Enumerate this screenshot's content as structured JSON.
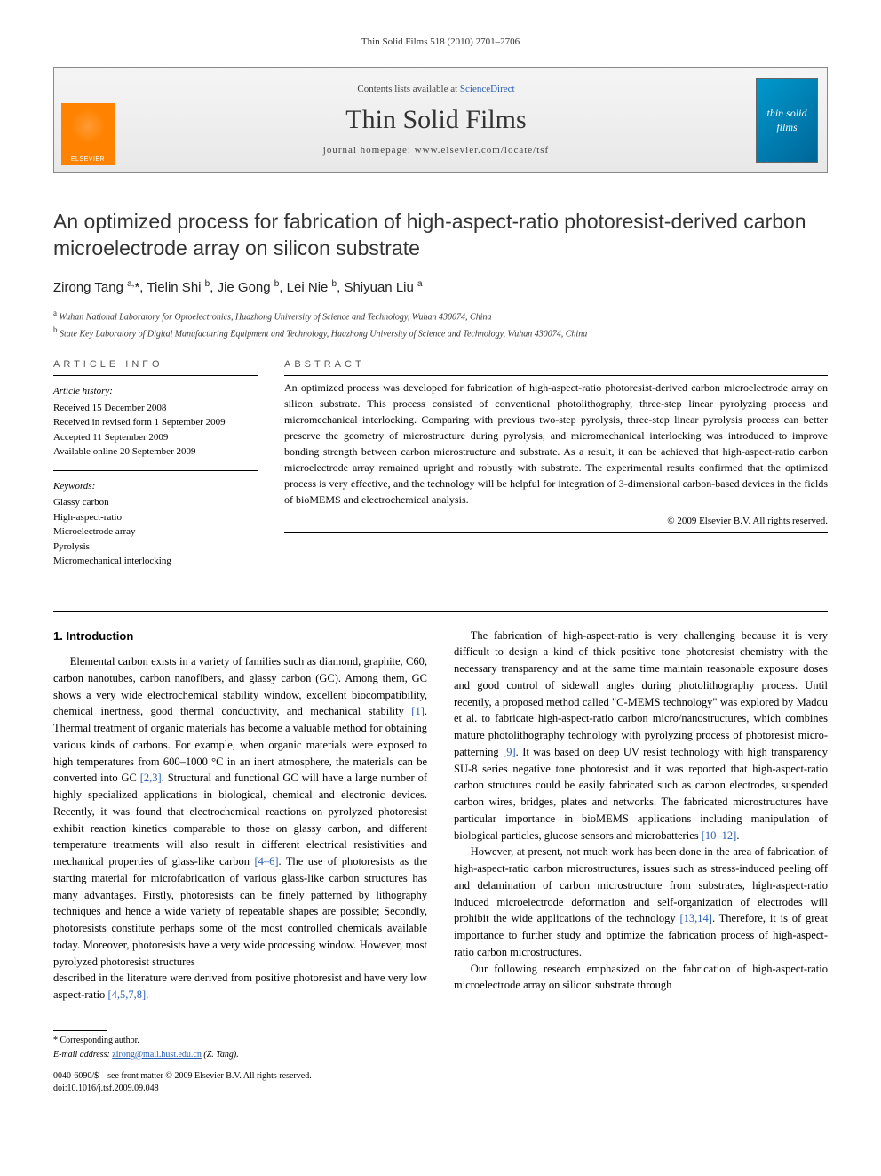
{
  "page_header": "Thin Solid Films 518 (2010) 2701–2706",
  "banner": {
    "contents_prefix": "Contents lists available at ",
    "contents_link": "ScienceDirect",
    "journal_name": "Thin Solid Films",
    "homepage_label": "journal homepage: www.elsevier.com/locate/tsf",
    "publisher_logo_text": "ELSEVIER",
    "cover_text": "thin solid films"
  },
  "title": "An optimized process for fabrication of high-aspect-ratio photoresist-derived carbon microelectrode array on silicon substrate",
  "authors_html": "Zirong Tang <sup>a,</sup>*, Tielin Shi <sup>b</sup>, Jie Gong <sup>b</sup>, Lei Nie <sup>b</sup>, Shiyuan Liu <sup>a</sup>",
  "affiliations": [
    {
      "sup": "a",
      "text": "Wuhan National Laboratory for Optoelectronics, Huazhong University of Science and Technology, Wuhan 430074, China"
    },
    {
      "sup": "b",
      "text": "State Key Laboratory of Digital Manufacturing Equipment and Technology, Huazhong University of Science and Technology, Wuhan 430074, China"
    }
  ],
  "info_label": "ARTICLE INFO",
  "abstract_label": "ABSTRACT",
  "history_title": "Article history:",
  "history": [
    "Received 15 December 2008",
    "Received in revised form 1 September 2009",
    "Accepted 11 September 2009",
    "Available online 20 September 2009"
  ],
  "keywords_title": "Keywords:",
  "keywords": [
    "Glassy carbon",
    "High-aspect-ratio",
    "Microelectrode array",
    "Pyrolysis",
    "Micromechanical interlocking"
  ],
  "abstract": "An optimized process was developed for fabrication of high-aspect-ratio photoresist-derived carbon microelectrode array on silicon substrate. This process consisted of conventional photolithography, three-step linear pyrolyzing process and micromechanical interlocking. Comparing with previous two-step pyrolysis, three-step linear pyrolysis process can better preserve the geometry of microstructure during pyrolysis, and micromechanical interlocking was introduced to improve bonding strength between carbon microstructure and substrate. As a result, it can be achieved that high-aspect-ratio carbon microelectrode array remained upright and robustly with substrate. The experimental results confirmed that the optimized process is very effective, and the technology will be helpful for integration of 3-dimensional carbon-based devices in the fields of bioMEMS and electrochemical analysis.",
  "copyright": "© 2009 Elsevier B.V. All rights reserved.",
  "section_heading": "1. Introduction",
  "para1": "Elemental carbon exists in a variety of families such as diamond, graphite, C60, carbon nanotubes, carbon nanofibers, and glassy carbon (GC). Among them, GC shows a very wide electrochemical stability window, excellent biocompatibility, chemical inertness, good thermal conductivity, and mechanical stability [1]. Thermal treatment of organic materials has become a valuable method for obtaining various kinds of carbons. For example, when organic materials were exposed to high temperatures from 600–1000 °C in an inert atmosphere, the materials can be converted into GC [2,3]. Structural and functional GC will have a large number of highly specialized applications in biological, chemical and electronic devices. Recently, it was found that electrochemical reactions on pyrolyzed photoresist exhibit reaction kinetics comparable to those on glassy carbon, and different temperature treatments will also result in different electrical resistivities and mechanical properties of glass-like carbon [4–6]. The use of photoresists as the starting material for microfabrication of various glass-like carbon structures has many advantages. Firstly, photoresists can be finely patterned by lithography techniques and hence a wide variety of repeatable shapes are possible; Secondly, photoresists constitute perhaps some of the most controlled chemicals available today. Moreover, photoresists have a very wide processing window. However, most pyrolyzed photoresist structures",
  "para2": "described in the literature were derived from positive photoresist and have very low aspect-ratio [4,5,7,8].",
  "para3": "The fabrication of high-aspect-ratio is very challenging because it is very difficult to design a kind of thick positive tone photoresist chemistry with the necessary transparency and at the same time maintain reasonable exposure doses and good control of sidewall angles during photolithography process. Until recently, a proposed method called \"C-MEMS technology\" was explored by Madou et al. to fabricate high-aspect-ratio carbon micro/nanostructures, which combines mature photolithography technology with pyrolyzing process of photoresist micro-patterning [9]. It was based on deep UV resist technology with high transparency SU-8 series negative tone photoresist and it was reported that high-aspect-ratio carbon structures could be easily fabricated such as carbon electrodes, suspended carbon wires, bridges, plates and networks. The fabricated microstructures have particular importance in bioMEMS applications including manipulation of biological particles, glucose sensors and microbatteries [10–12].",
  "para4": "However, at present, not much work has been done in the area of fabrication of high-aspect-ratio carbon microstructures, issues such as stress-induced peeling off and delamination of carbon microstructure from substrates, high-aspect-ratio induced microelectrode deformation and self-organization of electrodes will prohibit the wide applications of the technology [13,14]. Therefore, it is of great importance to further study and optimize the fabrication process of high-aspect-ratio carbon microstructures.",
  "para5": "Our following research emphasized on the fabrication of high-aspect-ratio microelectrode array on silicon substrate through",
  "footnote": {
    "corresp": "* Corresponding author.",
    "email_label": "E-mail address:",
    "email": "zirong@mail.hust.edu.cn",
    "email_suffix": "(Z. Tang)."
  },
  "doi_line1": "0040-6090/$ – see front matter © 2009 Elsevier B.V. All rights reserved.",
  "doi_line2": "doi:10.1016/j.tsf.2009.09.048",
  "colors": {
    "link": "#2a5db0",
    "elsevier_orange": "#ff8200",
    "cover_blue": "#0088bb"
  }
}
